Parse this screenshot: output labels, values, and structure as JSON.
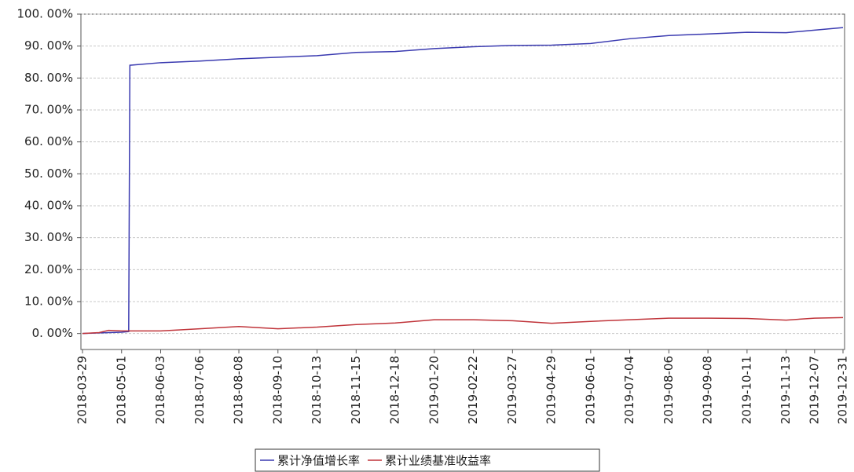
{
  "chart_data": {
    "type": "line",
    "x": [
      "2018-03-29",
      "2018-04-12",
      "2018-04-20",
      "2018-05-01",
      "2018-05-07",
      "2018-05-08",
      "2018-06-03",
      "2018-07-06",
      "2018-08-08",
      "2018-09-10",
      "2018-10-13",
      "2018-11-15",
      "2018-12-18",
      "2019-01-20",
      "2019-02-22",
      "2019-03-27",
      "2019-04-29",
      "2019-06-01",
      "2019-07-04",
      "2019-08-06",
      "2019-09-08",
      "2019-10-11",
      "2019-11-13",
      "2019-12-07",
      "2019-12-31"
    ],
    "series": [
      {
        "name": "累计净值增长率",
        "color": "#3a3ab0",
        "values": [
          0,
          0.2,
          0.3,
          0.4,
          0.6,
          84,
          84.8,
          85.3,
          86,
          86.5,
          87,
          88,
          88.3,
          89.2,
          89.8,
          90.2,
          90.3,
          90.8,
          92.3,
          93.3,
          93.8,
          94.3,
          94.2,
          95,
          95.8
        ]
      },
      {
        "name": "累计业绩基准收益率",
        "color": "#c0343a",
        "values": [
          0,
          0.3,
          1.0,
          0.8,
          0.8,
          0.8,
          0.8,
          1.5,
          2.2,
          1.5,
          2,
          2.8,
          3.3,
          4.3,
          4.3,
          4,
          3.2,
          3.8,
          4.3,
          4.8,
          4.8,
          4.7,
          4.2,
          4.8,
          5.0
        ]
      }
    ],
    "xlim": [
      "2018-03-29",
      "2019-12-31"
    ],
    "xticks": [
      "2018-03-29",
      "2018-05-01",
      "2018-06-03",
      "2018-07-06",
      "2018-08-08",
      "2018-09-10",
      "2018-10-13",
      "2018-11-15",
      "2018-12-18",
      "2019-01-20",
      "2019-02-22",
      "2019-03-27",
      "2019-04-29",
      "2019-06-01",
      "2019-07-04",
      "2019-08-06",
      "2019-09-08",
      "2019-10-11",
      "2019-11-13",
      "2019-12-07",
      "2019-12-31"
    ],
    "ylim": [
      -5,
      100
    ],
    "yticks": [
      {
        "value": 0,
        "label": "0. 00%"
      },
      {
        "value": 10,
        "label": "10. 00%"
      },
      {
        "value": 20,
        "label": "20. 00%"
      },
      {
        "value": 30,
        "label": "30. 00%"
      },
      {
        "value": 40,
        "label": "40. 00%"
      },
      {
        "value": 50,
        "label": "50. 00%"
      },
      {
        "value": 60,
        "label": "60. 00%"
      },
      {
        "value": 70,
        "label": "70. 00%"
      },
      {
        "value": 80,
        "label": "80. 00%"
      },
      {
        "value": 90,
        "label": "90. 00%"
      },
      {
        "value": 100,
        "label": "100. 00%"
      }
    ],
    "grid": true
  }
}
